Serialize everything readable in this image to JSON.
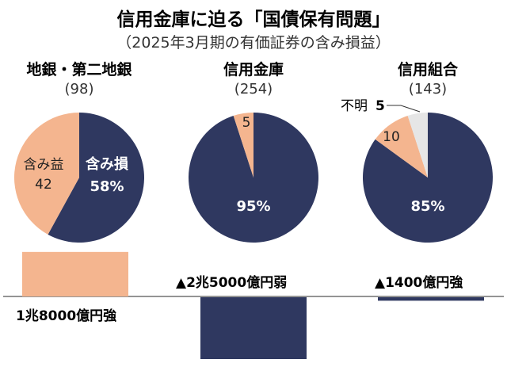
{
  "title": "信用金庫に迫る「国債保有問題」",
  "subtitle": "（2025年3月期の有価証券の含み損益）",
  "colors": {
    "loss": "#2f3860",
    "gain": "#f4b58f",
    "unknown": "#e6e6e6",
    "axis": "#555555"
  },
  "chart_data": [
    {
      "type": "pie",
      "group": "地銀・第二地銀",
      "count": "(98)",
      "slices": [
        {
          "name": "含み損",
          "value": 58,
          "label": "含み損",
          "value_label": "58%",
          "color_key": "loss"
        },
        {
          "name": "含み益",
          "value": 42,
          "label": "含み益",
          "value_label": "42",
          "color_key": "gain"
        }
      ]
    },
    {
      "type": "pie",
      "group": "信用金庫",
      "count": "(254)",
      "slices": [
        {
          "name": "含み損",
          "value": 95,
          "value_label": "95%",
          "color_key": "loss"
        },
        {
          "name": "含み益",
          "value": 5,
          "value_label": "5",
          "color_key": "gain"
        }
      ]
    },
    {
      "type": "pie",
      "group": "信用組合",
      "count": "(143)",
      "slices": [
        {
          "name": "含み損",
          "value": 85,
          "value_label": "85%",
          "color_key": "loss"
        },
        {
          "name": "含み益",
          "value": 10,
          "value_label": "10",
          "color_key": "gain"
        },
        {
          "name": "不明",
          "value": 5,
          "label": "不明",
          "value_label": "5",
          "color_key": "unknown"
        }
      ]
    },
    {
      "type": "bar",
      "unit": "億円",
      "categories": [
        "地銀・第二地銀",
        "信用金庫",
        "信用組合"
      ],
      "values": [
        18000,
        -25000,
        -1400
      ],
      "labels": [
        "1兆8000億円強",
        "▲2兆5000億円弱",
        "▲1400億円強"
      ]
    }
  ]
}
